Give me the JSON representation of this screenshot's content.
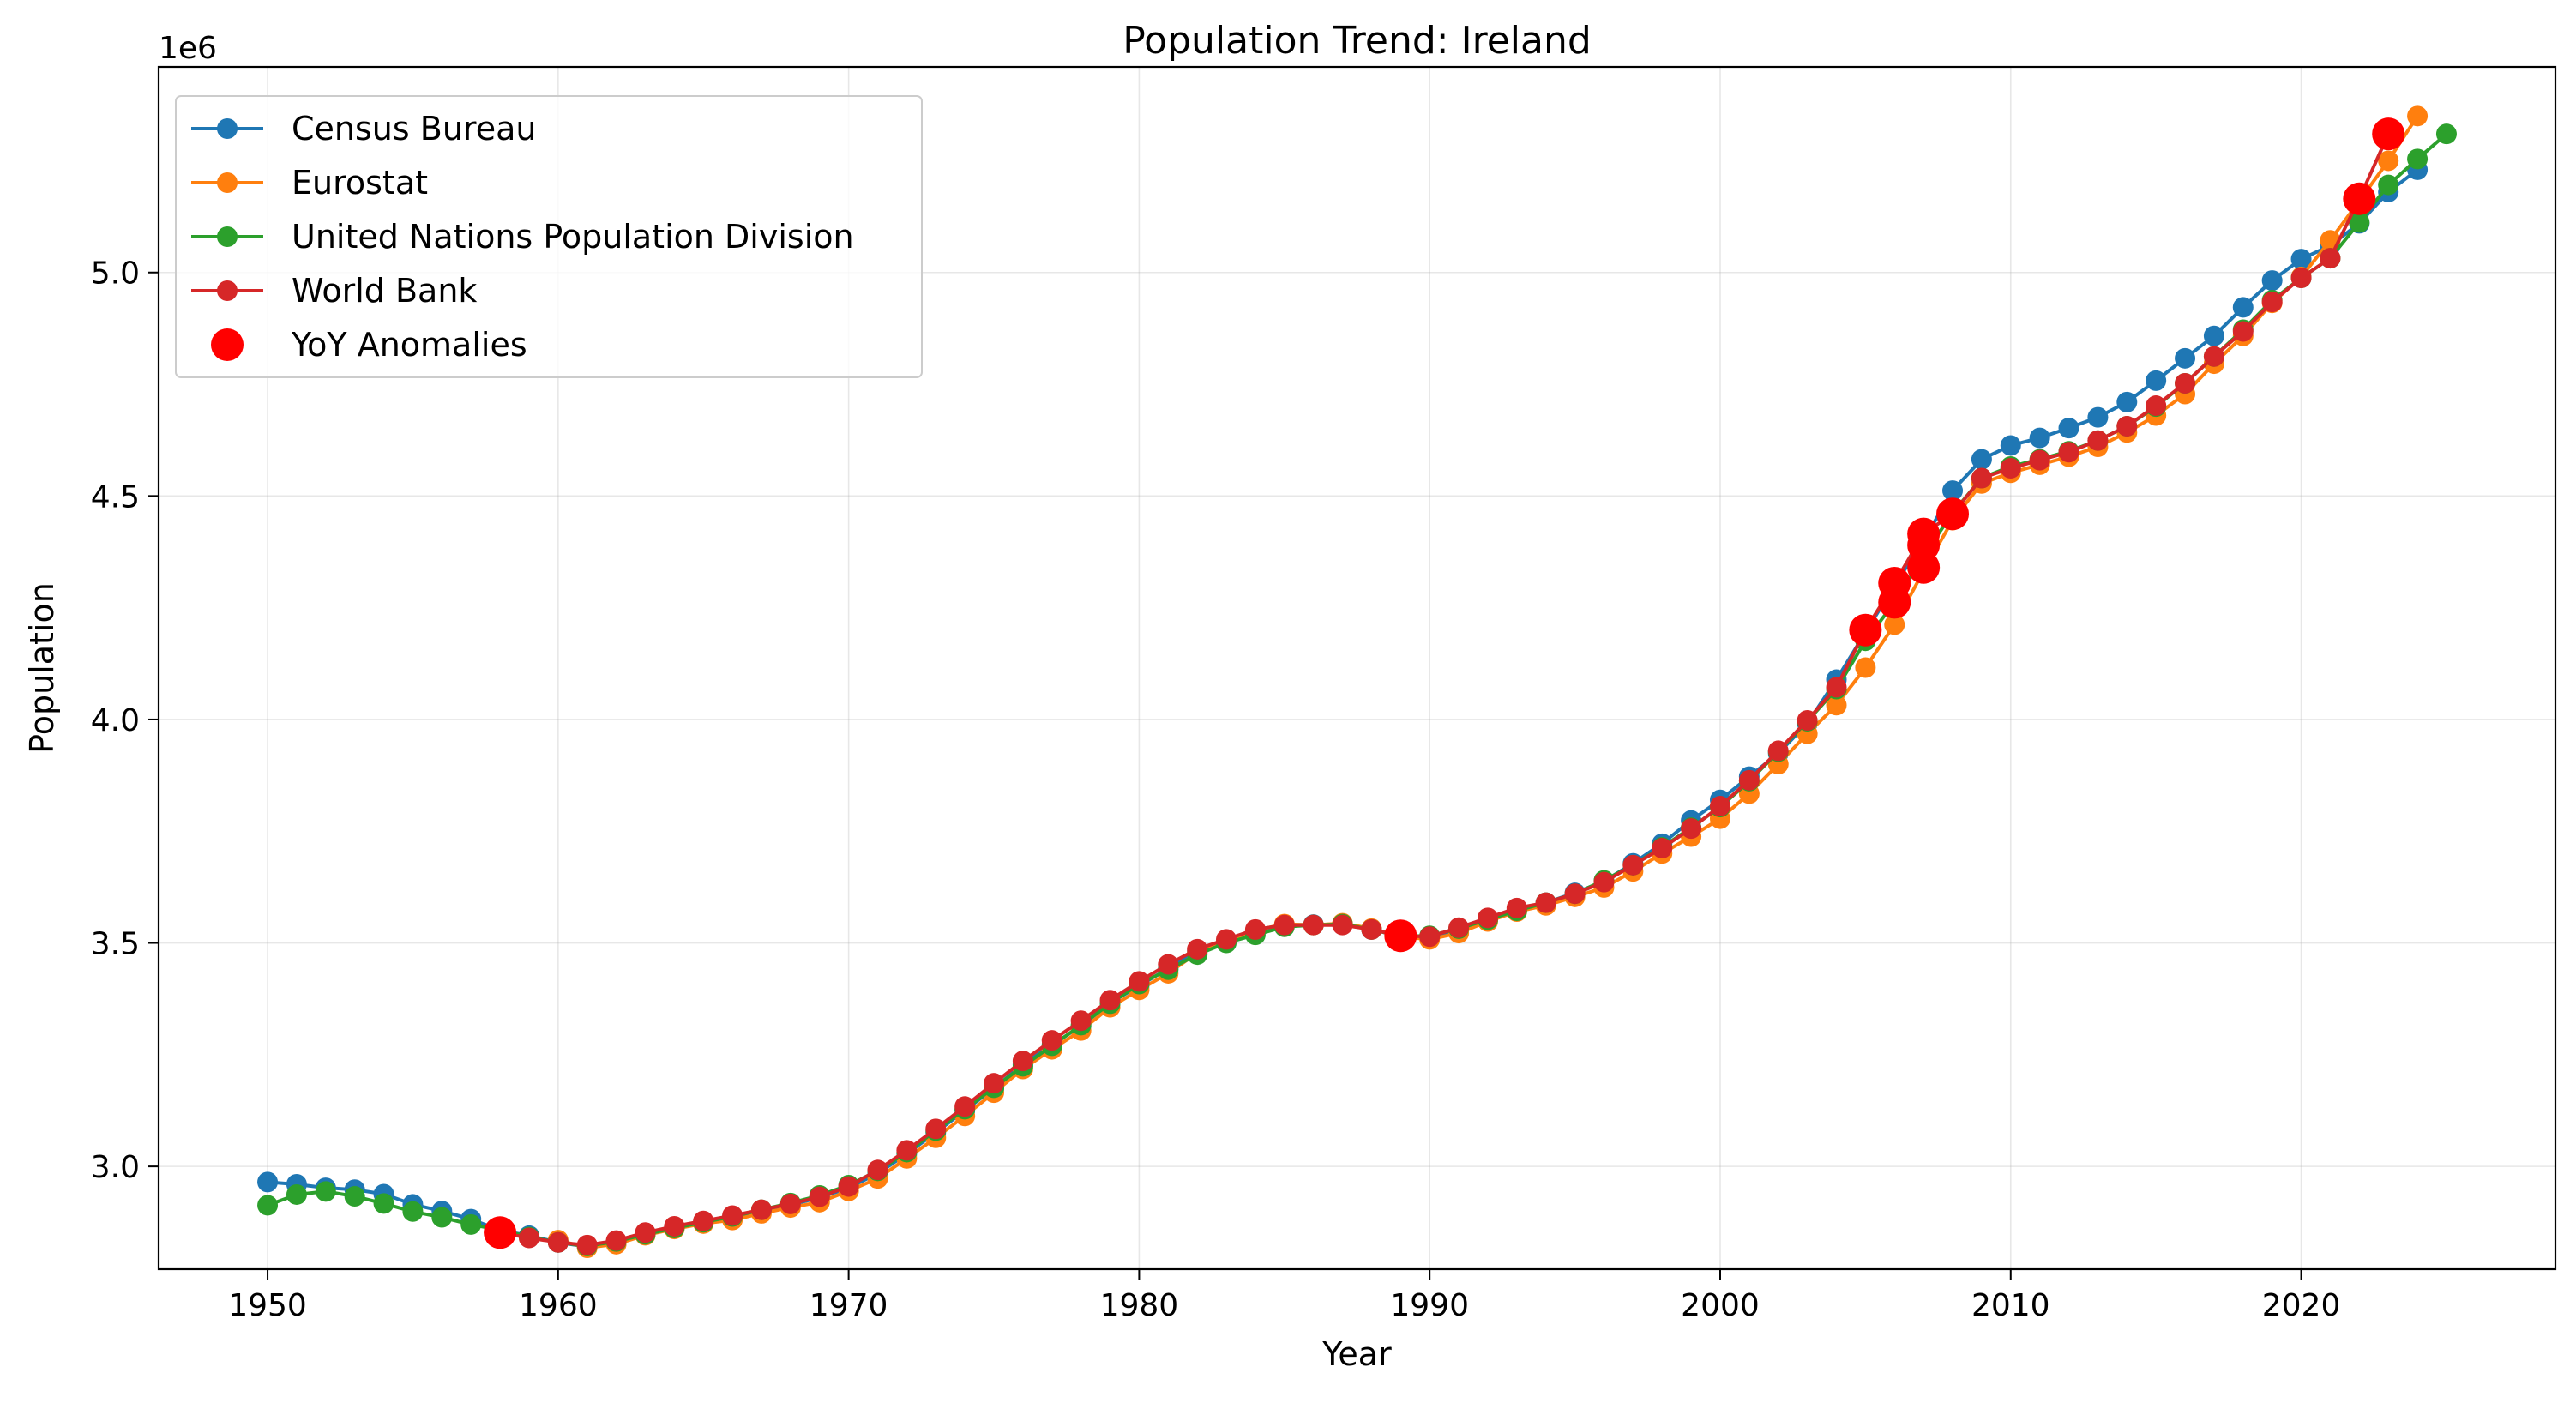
{
  "chart_data": {
    "type": "line",
    "title": "Population Trend: Ireland",
    "xlabel": "Year",
    "ylabel": "Population",
    "y_scale_note": "1e6",
    "xlim": [
      1946.25,
      2028.75
    ],
    "ylim": [
      2770000,
      5460000
    ],
    "x_ticks": [
      1950,
      1960,
      1970,
      1980,
      1990,
      2000,
      2010,
      2020
    ],
    "x_tick_labels": [
      "1950",
      "1960",
      "1970",
      "1980",
      "1990",
      "2000",
      "2010",
      "2020"
    ],
    "y_ticks": [
      3000000,
      3500000,
      4000000,
      4500000,
      5000000
    ],
    "y_tick_labels": [
      "3.0",
      "3.5",
      "4.0",
      "4.5",
      "5.0"
    ],
    "grid": true,
    "legend_position": "upper-left",
    "colors": {
      "census": "#1f77b4",
      "eurostat": "#ff7f0e",
      "un": "#2ca02c",
      "worldbank": "#d62728",
      "anomaly": "#ff0000"
    },
    "series": [
      {
        "name": "Census Bureau",
        "color": "#1f77b4",
        "x": [
          1950,
          1951,
          1952,
          1953,
          1954,
          1955,
          1956,
          1957,
          1958,
          1959,
          1960,
          1961,
          1962,
          1963,
          1964,
          1965,
          1966,
          1967,
          1968,
          1969,
          1970,
          1971,
          1972,
          1973,
          1974,
          1975,
          1976,
          1977,
          1978,
          1979,
          1980,
          1981,
          1982,
          1983,
          1984,
          1985,
          1986,
          1987,
          1988,
          1989,
          1990,
          1991,
          1992,
          1993,
          1994,
          1995,
          1996,
          1997,
          1998,
          1999,
          2000,
          2001,
          2002,
          2003,
          2004,
          2005,
          2006,
          2007,
          2008,
          2009,
          2010,
          2011,
          2012,
          2013,
          2014,
          2015,
          2016,
          2017,
          2018,
          2019,
          2020,
          2021,
          2022,
          2023,
          2024
        ],
        "y": [
          2965000,
          2960000,
          2952000,
          2948000,
          2938000,
          2915000,
          2900000,
          2882000,
          2857000,
          2845000,
          2830000,
          2820000,
          2830000,
          2850000,
          2864000,
          2876000,
          2884000,
          2900000,
          2914000,
          2930000,
          2952000,
          2984000,
          3028000,
          3076000,
          3125000,
          3175000,
          3228000,
          3272000,
          3314000,
          3366000,
          3404000,
          3443000,
          3481000,
          3505000,
          3527000,
          3541000,
          3541000,
          3542000,
          3530000,
          3515000,
          3514000,
          3530000,
          3552000,
          3574000,
          3590000,
          3612000,
          3638000,
          3678000,
          3722000,
          3774000,
          3820000,
          3872000,
          3924000,
          3991000,
          4089000,
          4195000,
          4300000,
          4400000,
          4512000,
          4582000,
          4613000,
          4630000,
          4652000,
          4676000,
          4710000,
          4758000,
          4808000,
          4858000,
          4922000,
          4982000,
          5030000,
          5060000,
          5110000,
          5180000,
          5230000
        ]
      },
      {
        "name": "Eurostat",
        "color": "#ff7f0e",
        "x": [
          1960,
          1961,
          1962,
          1963,
          1964,
          1965,
          1966,
          1967,
          1968,
          1969,
          1970,
          1971,
          1972,
          1973,
          1974,
          1975,
          1976,
          1977,
          1978,
          1979,
          1980,
          1981,
          1982,
          1983,
          1984,
          1985,
          1986,
          1987,
          1988,
          1989,
          1990,
          1991,
          1992,
          1993,
          1994,
          1995,
          1996,
          1997,
          1998,
          1999,
          2000,
          2001,
          2002,
          2003,
          2004,
          2005,
          2006,
          2007,
          2008,
          2009,
          2010,
          2011,
          2012,
          2013,
          2014,
          2015,
          2016,
          2017,
          2018,
          2019,
          2020,
          2021,
          2022,
          2023,
          2024
        ],
        "y": [
          2835000,
          2818000,
          2826000,
          2846000,
          2860000,
          2872000,
          2880000,
          2895000,
          2908000,
          2920000,
          2945000,
          2973000,
          3018000,
          3064000,
          3113000,
          3165000,
          3218000,
          3262000,
          3304000,
          3356000,
          3395000,
          3432000,
          3478000,
          3504000,
          3528000,
          3542000,
          3540000,
          3544000,
          3532000,
          3514000,
          3508000,
          3522000,
          3548000,
          3570000,
          3584000,
          3603000,
          3624000,
          3660000,
          3700000,
          3738000,
          3778000,
          3834000,
          3900000,
          3968000,
          4032000,
          4116000,
          4212000,
          4332000,
          4446000,
          4528000,
          4552000,
          4570000,
          4588000,
          4610000,
          4642000,
          4680000,
          4728000,
          4796000,
          4858000,
          4932000,
          4990000,
          5072000,
          5160000,
          5250000,
          5350000
        ]
      },
      {
        "name": "United Nations Population Division",
        "color": "#2ca02c",
        "x": [
          1950,
          1951,
          1952,
          1953,
          1954,
          1955,
          1956,
          1957,
          1958,
          1959,
          1960,
          1961,
          1962,
          1963,
          1964,
          1965,
          1966,
          1967,
          1968,
          1969,
          1970,
          1971,
          1972,
          1973,
          1974,
          1975,
          1976,
          1977,
          1978,
          1979,
          1980,
          1981,
          1982,
          1983,
          1984,
          1985,
          1986,
          1987,
          1988,
          1989,
          1990,
          1991,
          1992,
          1993,
          1994,
          1995,
          1996,
          1997,
          1998,
          1999,
          2000,
          2001,
          2002,
          2003,
          2004,
          2005,
          2006,
          2007,
          2008,
          2009,
          2010,
          2011,
          2012,
          2013,
          2014,
          2015,
          2016,
          2017,
          2018,
          2019,
          2020,
          2021,
          2022,
          2023,
          2024,
          2025
        ],
        "y": [
          2913000,
          2937000,
          2944000,
          2933000,
          2917000,
          2899000,
          2886000,
          2870000,
          2858000,
          2842000,
          2830000,
          2822000,
          2832000,
          2848000,
          2862000,
          2875000,
          2888000,
          2903000,
          2918000,
          2935000,
          2958000,
          2990000,
          3032000,
          3080000,
          3128000,
          3176000,
          3224000,
          3270000,
          3316000,
          3364000,
          3408000,
          3440000,
          3474000,
          3500000,
          3518000,
          3536000,
          3540000,
          3542000,
          3530000,
          3515000,
          3516000,
          3532000,
          3552000,
          3572000,
          3590000,
          3610000,
          3640000,
          3674000,
          3714000,
          3758000,
          3804000,
          3862000,
          3928000,
          3996000,
          4068000,
          4176000,
          4262000,
          4366000,
          4462000,
          4540000,
          4566000,
          4582000,
          4600000,
          4624000,
          4656000,
          4700000,
          4752000,
          4812000,
          4872000,
          4938000,
          4988000,
          5032000,
          5112000,
          5196000,
          5254000,
          5310000
        ]
      },
      {
        "name": "World Bank",
        "color": "#d62728",
        "x": [
          1958,
          1959,
          1960,
          1961,
          1962,
          1963,
          1964,
          1965,
          1966,
          1967,
          1968,
          1969,
          1970,
          1971,
          1972,
          1973,
          1974,
          1975,
          1976,
          1977,
          1978,
          1979,
          1980,
          1981,
          1982,
          1983,
          1984,
          1985,
          1986,
          1987,
          1988,
          1989,
          1990,
          1991,
          1992,
          1993,
          1994,
          1995,
          1996,
          1997,
          1998,
          1999,
          2000,
          2001,
          2002,
          2003,
          2004,
          2005,
          2006,
          2007,
          2008,
          2009,
          2010,
          2011,
          2012,
          2013,
          2014,
          2015,
          2016,
          2017,
          2018,
          2019,
          2020,
          2021,
          2022,
          2023
        ],
        "y": [
          2852000,
          2840000,
          2830000,
          2824000,
          2834000,
          2852000,
          2866000,
          2878000,
          2890000,
          2903000,
          2916000,
          2932000,
          2955000,
          2992000,
          3036000,
          3084000,
          3134000,
          3186000,
          3236000,
          3282000,
          3326000,
          3372000,
          3414000,
          3452000,
          3486000,
          3508000,
          3530000,
          3540000,
          3540000,
          3540000,
          3530000,
          3516000,
          3514000,
          3534000,
          3556000,
          3578000,
          3590000,
          3610000,
          3636000,
          3674000,
          3712000,
          3756000,
          3806000,
          3864000,
          3930000,
          3998000,
          4072000,
          4200000,
          4305000,
          4415000,
          4460000,
          4540000,
          4562000,
          4580000,
          4598000,
          4624000,
          4656000,
          4702000,
          4752000,
          4812000,
          4868000,
          4934000,
          4988000,
          5032000,
          5165000,
          5310000
        ]
      },
      {
        "name": "YoY Anomalies",
        "type": "scatter",
        "color": "#ff0000",
        "x": [
          1958,
          1989,
          2005,
          2006,
          2006,
          2007,
          2007,
          2007,
          2008,
          2022,
          2023
        ],
        "y": [
          2852000,
          3516000,
          4200000,
          4262000,
          4305000,
          4340000,
          4390000,
          4415000,
          4460000,
          5165000,
          5310000
        ]
      }
    ]
  }
}
